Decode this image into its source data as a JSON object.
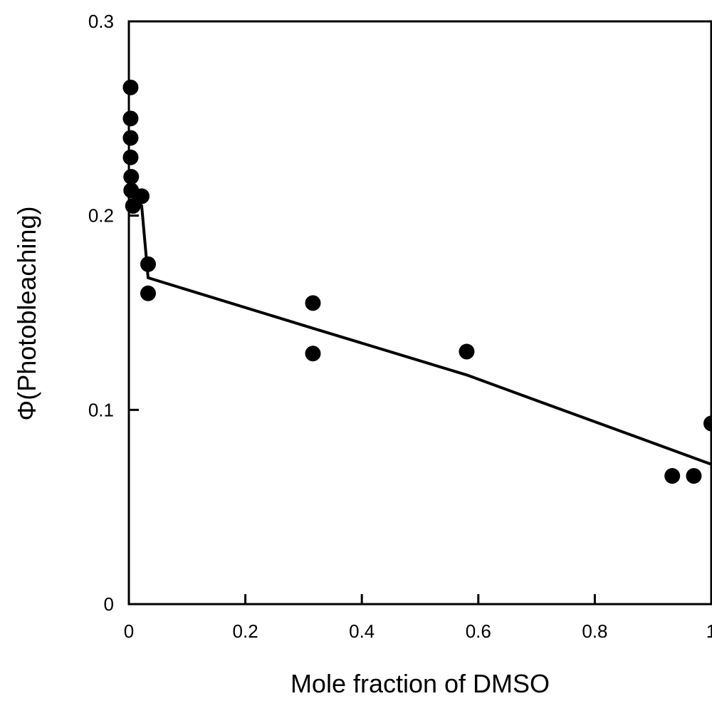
{
  "chart_data": {
    "type": "scatter",
    "xlabel": "Mole fraction of DMSO",
    "ylabel": "Φ(Photobleaching)",
    "xlim": [
      0,
      1
    ],
    "ylim": [
      0,
      0.3
    ],
    "x_ticks": [
      0,
      0.2,
      0.4,
      0.6,
      0.8,
      1
    ],
    "x_tick_labels": [
      "0",
      "0.2",
      "0.4",
      "0.6",
      "0.8",
      "1"
    ],
    "y_ticks": [
      0,
      0.1,
      0.2,
      0.3
    ],
    "y_tick_labels": [
      "0",
      "0.1",
      "0.2",
      "0.3"
    ],
    "grid": false,
    "series": [
      {
        "kind": "points",
        "points": [
          {
            "x": 0.003,
            "y": 0.266
          },
          {
            "x": 0.003,
            "y": 0.25
          },
          {
            "x": 0.003,
            "y": 0.24
          },
          {
            "x": 0.003,
            "y": 0.23
          },
          {
            "x": 0.004,
            "y": 0.22
          },
          {
            "x": 0.004,
            "y": 0.213
          },
          {
            "x": 0.007,
            "y": 0.205
          },
          {
            "x": 0.022,
            "y": 0.21
          },
          {
            "x": 0.033,
            "y": 0.175
          },
          {
            "x": 0.033,
            "y": 0.16
          },
          {
            "x": 0.316,
            "y": 0.155
          },
          {
            "x": 0.316,
            "y": 0.129
          },
          {
            "x": 0.58,
            "y": 0.13
          },
          {
            "x": 0.933,
            "y": 0.066
          },
          {
            "x": 0.97,
            "y": 0.066
          },
          {
            "x": 1.0,
            "y": 0.093
          }
        ]
      },
      {
        "kind": "line",
        "points": [
          {
            "x": 0.0,
            "y": 0.212
          },
          {
            "x": 0.022,
            "y": 0.205
          },
          {
            "x": 0.033,
            "y": 0.168
          },
          {
            "x": 0.316,
            "y": 0.142
          },
          {
            "x": 0.58,
            "y": 0.118
          },
          {
            "x": 1.0,
            "y": 0.072
          }
        ]
      }
    ]
  }
}
